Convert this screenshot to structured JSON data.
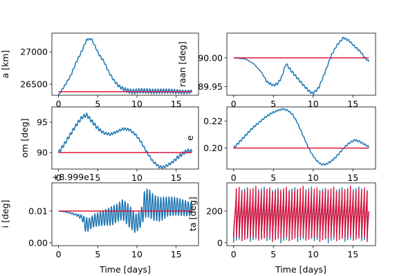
{
  "colors": {
    "series": "#1f77b4",
    "reference": "#dc143c"
  },
  "chart_data": [
    {
      "type": "line",
      "ylabel": "a [km]",
      "xlabel": "",
      "xlim": [
        -0.85,
        17.85
      ],
      "ylim": [
        26330,
        27290
      ],
      "xticks": [
        0,
        5,
        10,
        15
      ],
      "xtick_labels": [
        "0",
        "5",
        "10",
        "15"
      ],
      "yticks": [
        26500,
        27000
      ],
      "ytick_labels": [
        "26500",
        "27000"
      ],
      "offset_text": "",
      "series": [
        {
          "role": "osculating",
          "kind": "osc",
          "x": [
            0,
            0.8,
            1.5,
            2.3,
            3.0,
            3.6,
            4.2,
            4.6,
            5.2,
            5.8,
            6.4,
            7.0,
            7.6,
            8.2,
            8.8,
            9.5,
            10.5,
            12,
            14,
            16,
            17
          ],
          "y": [
            26330,
            26480,
            26620,
            26850,
            27020,
            27190,
            27200,
            27100,
            26950,
            26850,
            26690,
            26570,
            26480,
            26430,
            26400,
            26385,
            26400,
            26390,
            26395,
            26380,
            26385
          ],
          "osc_amp": [
            10,
            14,
            16,
            18,
            18,
            12,
            12,
            14,
            16,
            18,
            18,
            18,
            20,
            28,
            34,
            38,
            36,
            36,
            34,
            28,
            26
          ],
          "osc_period": 0.35
        },
        {
          "role": "reference",
          "kind": "flat",
          "x": [
            0,
            17
          ],
          "y": [
            26385,
            26385
          ]
        }
      ]
    },
    {
      "type": "line",
      "ylabel": "raan [deg]",
      "xlabel": "",
      "xlim": [
        -0.85,
        17.85
      ],
      "ylim": [
        89.935,
        90.043
      ],
      "xticks": [
        0,
        5,
        10,
        15
      ],
      "xtick_labels": [
        "0",
        "5",
        "10",
        "15"
      ],
      "yticks": [
        89.95,
        90.0
      ],
      "ytick_labels": [
        "89.95",
        "90.00"
      ],
      "offset_text": "",
      "series": [
        {
          "role": "osculating",
          "kind": "smooth",
          "x": [
            0,
            1.5,
            2.5,
            3.5,
            4.2,
            5.0,
            5.5,
            6.0,
            6.6,
            7.2,
            8.0,
            8.8,
            9.5,
            10.0,
            10.7,
            11.5,
            12.3,
            13.0,
            13.8,
            14.5,
            15.2,
            16.0,
            16.5,
            17.0
          ],
          "y": [
            90.0,
            89.998,
            89.99,
            89.975,
            89.958,
            89.952,
            89.955,
            89.965,
            89.99,
            89.978,
            89.965,
            89.952,
            89.942,
            89.938,
            89.948,
            89.975,
            90.005,
            90.022,
            90.035,
            90.03,
            90.02,
            90.01,
            90.0,
            89.994
          ],
          "osc_amp": [
            0.0,
            0.0,
            0.0,
            0.0,
            0.002,
            0.002,
            0.002,
            0.002,
            0.002,
            0.002,
            0.002,
            0.002,
            0.002,
            0.002,
            0.002,
            0.0015,
            0.0015,
            0.0015,
            0.0015,
            0.0015,
            0.0015,
            0.0015,
            0.0015,
            0.0015
          ],
          "osc_period": 0.35
        },
        {
          "role": "reference",
          "kind": "flat",
          "x": [
            0,
            17
          ],
          "y": [
            90.0,
            90.0
          ]
        }
      ]
    },
    {
      "type": "line",
      "ylabel": "om [deg]",
      "xlabel": "",
      "xlim": [
        -0.85,
        17.85
      ],
      "ylim": [
        87.3,
        97.5
      ],
      "xticks": [
        0,
        5,
        10,
        15
      ],
      "xtick_labels": [
        "0",
        "5",
        "10",
        "15"
      ],
      "yticks": [
        90,
        95
      ],
      "ytick_labels": [
        "90",
        "95"
      ],
      "offset_text": "",
      "series": [
        {
          "role": "osculating",
          "kind": "smooth",
          "x": [
            0,
            0.8,
            1.6,
            2.4,
            3.0,
            3.6,
            4.2,
            5.0,
            5.8,
            6.6,
            7.4,
            8.2,
            9.0,
            9.8,
            10.5,
            11.2,
            12.0,
            12.8,
            13.4,
            14.0,
            14.6,
            15.2,
            16.0,
            16.5,
            17.0
          ],
          "y": [
            90.0,
            91.5,
            93.2,
            94.8,
            95.8,
            96.2,
            95.2,
            94.0,
            93.2,
            93.0,
            93.4,
            93.9,
            93.8,
            93.0,
            91.8,
            90.2,
            88.6,
            87.7,
            87.6,
            88.0,
            88.5,
            89.2,
            90.0,
            90.3,
            90.2
          ],
          "osc_amp": [
            0.3,
            0.3,
            0.3,
            0.3,
            0.3,
            0.3,
            0.3,
            0.3,
            0.2,
            0.2,
            0.2,
            0.2,
            0.2,
            0.2,
            0.2,
            0.2,
            0.2,
            0.2,
            0.2,
            0.2,
            0.2,
            0.3,
            0.3,
            0.3,
            0.3
          ],
          "osc_period": 0.35
        },
        {
          "role": "reference",
          "kind": "flat",
          "x": [
            0,
            17
          ],
          "y": [
            90.0,
            90.0
          ]
        }
      ]
    },
    {
      "type": "line",
      "ylabel": "e",
      "xlabel": "",
      "xlim": [
        -0.85,
        17.85
      ],
      "ylim": [
        0.1845,
        0.2305
      ],
      "xticks": [
        0,
        5,
        10,
        15
      ],
      "xtick_labels": [
        "0",
        "5",
        "10",
        "15"
      ],
      "yticks": [
        0.2,
        0.22
      ],
      "ytick_labels": [
        "0.20",
        "0.22"
      ],
      "offset_text": "",
      "series": [
        {
          "role": "osculating",
          "kind": "smooth",
          "x": [
            0,
            0.8,
            1.6,
            2.4,
            3.2,
            4.0,
            4.8,
            5.6,
            6.2,
            6.8,
            7.4,
            8.0,
            8.6,
            9.2,
            9.8,
            10.4,
            11.0,
            11.6,
            12.2,
            12.8,
            13.4,
            14.0,
            14.6,
            15.2,
            15.8,
            16.4,
            17.0
          ],
          "y": [
            0.2,
            0.205,
            0.21,
            0.215,
            0.219,
            0.223,
            0.226,
            0.228,
            0.229,
            0.228,
            0.225,
            0.219,
            0.211,
            0.203,
            0.196,
            0.191,
            0.188,
            0.188,
            0.19,
            0.193,
            0.197,
            0.201,
            0.204,
            0.206,
            0.205,
            0.203,
            0.201
          ],
          "osc_amp": [
            0.0008,
            0.0008,
            0.0008,
            0.0008,
            0.0006,
            0.0006,
            0.0006,
            0.0005,
            0.0005,
            0.0005,
            0.0005,
            0.0005,
            0.0005,
            0.0005,
            0.0005,
            0.0005,
            0.0005,
            0.0005,
            0.0006,
            0.0006,
            0.0006,
            0.0006,
            0.0006,
            0.0006,
            0.0006,
            0.0006,
            0.0006
          ],
          "osc_period": 0.35
        },
        {
          "role": "reference",
          "kind": "flat",
          "x": [
            0,
            17
          ],
          "y": [
            0.2,
            0.2
          ]
        }
      ]
    },
    {
      "type": "line",
      "ylabel": "i [deg]",
      "xlabel": "Time [days]",
      "xlim": [
        -0.85,
        17.85
      ],
      "ylim": [
        -0.0009,
        0.0189
      ],
      "xticks": [
        0,
        5,
        10,
        15
      ],
      "xtick_labels": [
        "0",
        "5",
        "10",
        "15"
      ],
      "yticks": [
        0.0,
        0.01
      ],
      "ytick_labels": [
        "0.00",
        "0.01"
      ],
      "offset_text": "+8.999e1",
      "series": [
        {
          "role": "osculating",
          "kind": "osc",
          "x": [
            0,
            0.8,
            1.5,
            2.3,
            3.0,
            3.5,
            4.0,
            4.5,
            5.2,
            6.0,
            6.8,
            7.5,
            8.2,
            9.0,
            9.8,
            10.5,
            11.0,
            11.5,
            12.2,
            13.0,
            14.0,
            15.0,
            16.0,
            17.0
          ],
          "y": [
            0.01,
            0.0098,
            0.0094,
            0.0088,
            0.008,
            0.0055,
            0.006,
            0.007,
            0.0075,
            0.008,
            0.0085,
            0.0095,
            0.0105,
            0.0085,
            0.006,
            0.0075,
            0.0125,
            0.0125,
            0.011,
            0.0105,
            0.0115,
            0.0115,
            0.011,
            0.0105
          ],
          "osc_amp": [
            0.0,
            0.0001,
            0.0002,
            0.0003,
            0.0008,
            0.0025,
            0.0018,
            0.002,
            0.0022,
            0.0025,
            0.003,
            0.0028,
            0.0032,
            0.0035,
            0.003,
            0.0025,
            0.0045,
            0.0045,
            0.004,
            0.0038,
            0.003,
            0.0028,
            0.0025,
            0.002
          ],
          "osc_period": 0.35
        },
        {
          "role": "reference",
          "kind": "flat",
          "x": [
            0,
            17
          ],
          "y": [
            0.01,
            0.01
          ]
        }
      ]
    },
    {
      "type": "line",
      "ylabel": "ta [deg]",
      "xlabel": "Time [days]",
      "xlim": [
        -0.85,
        17.85
      ],
      "ylim": [
        -18,
        378
      ],
      "xticks": [
        0,
        5,
        10,
        15
      ],
      "xtick_labels": [
        "0",
        "5",
        "10",
        "15"
      ],
      "yticks": [
        0,
        200
      ],
      "ytick_labels": [
        "0",
        "200"
      ],
      "offset_text": "",
      "series": [
        {
          "role": "osculating",
          "kind": "sawtooth",
          "t_start": 0,
          "t_end": 17,
          "period": 0.35,
          "phase": 0.0,
          "min": 0,
          "max": 360
        },
        {
          "role": "reference",
          "kind": "sawtooth",
          "t_start": 0,
          "t_end": 17,
          "period": 0.35,
          "phase": 0.02,
          "min": 0,
          "max": 360
        }
      ]
    }
  ]
}
